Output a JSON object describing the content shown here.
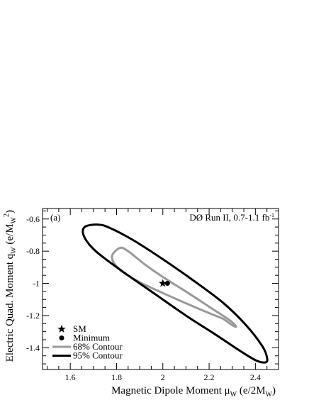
{
  "chart_data": {
    "type": "scatter",
    "panel_label": "(a)",
    "experiment_label": "DØ Run II, 0.7-1.1 fb",
    "experiment_label_sup": "-1",
    "xlabel": "Magnetic Dipole Moment μ",
    "xlabel_sub": "W",
    "xlabel_unit_prefix": " (e/2M",
    "xlabel_unit_sub": "W",
    "xlabel_unit_suffix": ")",
    "ylabel": "Electric Quad. Moment q",
    "ylabel_sub": "W",
    "ylabel_unit_prefix": " (e/M",
    "ylabel_unit_sub": "W",
    "ylabel_unit_sup": "2",
    "ylabel_unit_suffix": ")",
    "xlim": [
      1.48,
      2.5
    ],
    "ylim": [
      -1.535,
      -0.535
    ],
    "xticks": [
      1.6,
      1.8,
      2.0,
      2.2,
      2.4
    ],
    "xtick_labels": [
      "1.6",
      "1.8",
      "2",
      "2.2",
      "2.4"
    ],
    "yticks": [
      -0.6,
      -0.8,
      -1.0,
      -1.2,
      -1.4
    ],
    "ytick_labels": [
      "-0.6",
      "-0.8",
      "-1",
      "-1.2",
      "-1.4"
    ],
    "grid": false,
    "legend_position": "bottom-left",
    "points": [
      {
        "name": "SM",
        "x": 2.0,
        "y": -1.0,
        "marker": "star"
      },
      {
        "name": "Minimum",
        "x": 2.02,
        "y": -1.0,
        "marker": "circle"
      }
    ],
    "contours": [
      {
        "name": "68% Contour",
        "color": "#999999",
        "x": [
          1.814,
          1.78,
          1.81,
          1.89,
          2.0,
          2.11,
          2.2,
          2.26,
          2.295,
          2.315,
          2.31,
          2.28,
          2.2,
          2.11,
          2.0,
          1.92,
          1.85,
          1.814
        ],
        "y": [
          -0.78,
          -0.835,
          -0.91,
          -0.985,
          -1.06,
          -1.13,
          -1.185,
          -1.22,
          -1.255,
          -1.27,
          -1.255,
          -1.22,
          -1.145,
          -1.06,
          -0.96,
          -0.88,
          -0.8,
          -0.78
        ]
      },
      {
        "name": "95% Contour",
        "color": "#000000",
        "x": [
          1.72,
          1.662,
          1.66,
          1.71,
          1.82,
          1.96,
          2.1,
          2.23,
          2.34,
          2.405,
          2.445,
          2.45,
          2.43,
          2.36,
          2.26,
          2.13,
          2.0,
          1.87,
          1.77,
          1.72
        ],
        "y": [
          -0.635,
          -0.65,
          -0.71,
          -0.8,
          -0.92,
          -1.06,
          -1.2,
          -1.32,
          -1.425,
          -1.48,
          -1.49,
          -1.46,
          -1.39,
          -1.26,
          -1.12,
          -0.98,
          -0.85,
          -0.73,
          -0.655,
          -0.635
        ]
      }
    ],
    "legend": [
      {
        "label": "SM",
        "marker": "star"
      },
      {
        "label": "Minimum",
        "marker": "circle"
      },
      {
        "label": "68% Contour",
        "marker": "line",
        "color": "#999999"
      },
      {
        "label": "95% Contour",
        "marker": "line",
        "color": "#000000"
      }
    ]
  }
}
